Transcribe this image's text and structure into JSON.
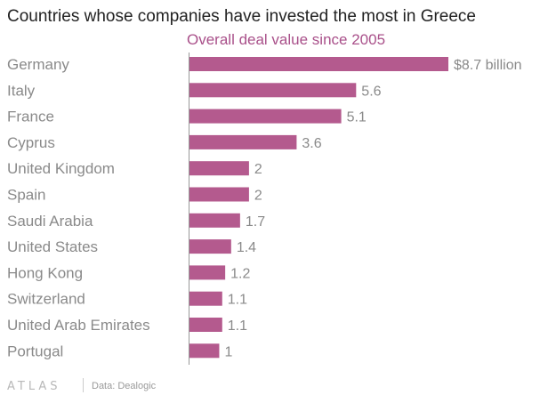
{
  "chart_data": {
    "type": "bar",
    "orientation": "horizontal",
    "title": "Countries whose companies have invested the most in Greece",
    "subtitle": "Overall deal value since 2005",
    "categories": [
      "Germany",
      "Italy",
      "France",
      "Cyprus",
      "United Kingdom",
      "Spain",
      "Saudi Arabia",
      "United States",
      "Hong Kong",
      "Switzerland",
      "United Arab Emirates",
      "Portugal"
    ],
    "values": [
      8.7,
      5.6,
      5.1,
      3.6,
      2,
      2,
      1.7,
      1.4,
      1.2,
      1.1,
      1.1,
      1
    ],
    "value_labels": [
      "$8.7 billion",
      "5.6",
      "5.1",
      "3.6",
      "2",
      "2",
      "1.7",
      "1.4",
      "1.2",
      "1.1",
      "1.1",
      "1"
    ],
    "xlim": [
      0,
      8.7
    ],
    "grid": false,
    "colors": {
      "bar": "#b45a8e",
      "subtitle": "#a9508a",
      "axis": "#999999"
    }
  },
  "footer": {
    "brand": "ATLAS",
    "source": "Data: Dealogic"
  }
}
